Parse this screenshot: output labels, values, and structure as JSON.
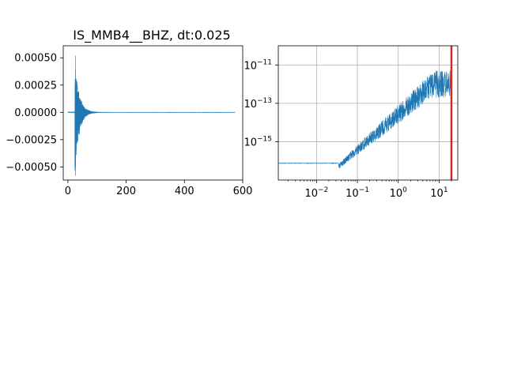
{
  "chart_data": [
    {
      "type": "line",
      "title": "IS_MMB4__BHZ, dt:0.025",
      "xlabel": "",
      "ylabel": "",
      "xlim": [
        -16,
        600
      ],
      "ylim": [
        -0.00062,
        0.00061
      ],
      "x_ticks": [
        0,
        200,
        400,
        600
      ],
      "x_tick_labels": [
        "0",
        "200",
        "400",
        "600"
      ],
      "y_ticks": [
        0.0005,
        0.00025,
        0.0,
        -0.00025,
        -0.0005
      ],
      "y_tick_labels": [
        "0.00050",
        "0.00025",
        "0.00000",
        "−0.00025",
        "−0.00050"
      ],
      "grid": false,
      "series": [
        {
          "color": "#1f77b4",
          "duration": 573,
          "event_time": 24,
          "peak_positive": 0.00052,
          "peak_negative": -0.00058,
          "pre_event_noise": 4e-06,
          "envelope_decay_s": 14
        }
      ]
    },
    {
      "type": "line",
      "title": "",
      "xlabel": "",
      "ylabel": "",
      "x_scale": "log",
      "y_scale": "log",
      "xlim": [
        0.00116,
        28.6
      ],
      "ylim": [
        1e-17,
        1e-10
      ],
      "x_ticks": [
        0.01,
        0.1,
        1,
        10
      ],
      "x_tick_labels": [
        {
          "base": "10",
          "exp": "−2"
        },
        {
          "base": "10",
          "exp": "−1"
        },
        {
          "base": "10",
          "exp": "0"
        },
        {
          "base": "10",
          "exp": "1"
        }
      ],
      "y_ticks": [
        1e-11,
        1e-13,
        1e-15
      ],
      "y_tick_labels": [
        {
          "base": "10",
          "exp": "−11"
        },
        {
          "base": "10",
          "exp": "−13"
        },
        {
          "base": "10",
          "exp": "−15"
        }
      ],
      "grid": true,
      "series": [
        {
          "color": "#1f77b4",
          "floor_level": 7.5e-17,
          "floor_until_hz": 0.035,
          "peak_level": 5e-12,
          "peak_freq_hz": 7,
          "cutoff_freq_hz": 20
        }
      ],
      "marker_line": {
        "x": 20,
        "color": "#d62728"
      }
    }
  ]
}
